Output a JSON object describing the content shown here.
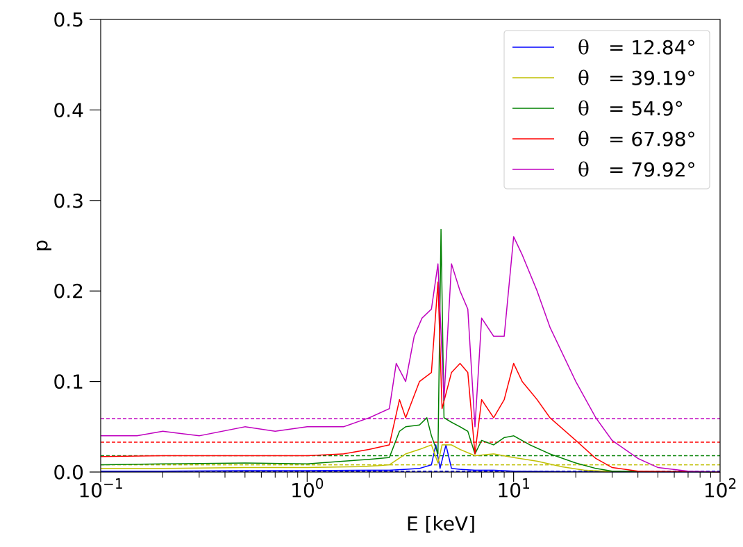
{
  "chart_data": {
    "type": "line",
    "title": "",
    "xlabel": "E [keV]",
    "ylabel": "p",
    "xscale": "log",
    "xlim": [
      0.1,
      100
    ],
    "ylim": [
      0.0,
      0.5
    ],
    "x_ticks": [
      {
        "value": 0.1,
        "base": "10",
        "exp": "−1"
      },
      {
        "value": 1,
        "base": "10",
        "exp": "0"
      },
      {
        "value": 10,
        "base": "10",
        "exp": "1"
      },
      {
        "value": 100,
        "base": "10",
        "exp": "2"
      }
    ],
    "y_ticks": [
      {
        "value": 0.0,
        "label": "0.0"
      },
      {
        "value": 0.1,
        "label": "0.1"
      },
      {
        "value": 0.2,
        "label": "0.2"
      },
      {
        "value": 0.3,
        "label": "0.3"
      },
      {
        "value": 0.4,
        "label": "0.4"
      },
      {
        "value": 0.5,
        "label": "0.5"
      }
    ],
    "grid": false,
    "legend_position": "top-right",
    "legend_symbol": "θ",
    "series": [
      {
        "name": "= 12.84°",
        "color": "#0000ff",
        "mean": 0.001,
        "points": [
          [
            0.1,
            0.001
          ],
          [
            0.2,
            0.001
          ],
          [
            0.5,
            0.0015
          ],
          [
            1.0,
            0.0015
          ],
          [
            2.0,
            0.002
          ],
          [
            2.5,
            0.002
          ],
          [
            3.0,
            0.003
          ],
          [
            3.5,
            0.004
          ],
          [
            4.0,
            0.008
          ],
          [
            4.2,
            0.03
          ],
          [
            4.4,
            0.004
          ],
          [
            4.7,
            0.03
          ],
          [
            5.0,
            0.004
          ],
          [
            5.5,
            0.003
          ],
          [
            6.5,
            0.002
          ],
          [
            8.0,
            0.002
          ],
          [
            10,
            0.001
          ],
          [
            15,
            0.0005
          ],
          [
            20,
            0.0002
          ],
          [
            40,
            0.0001
          ],
          [
            100,
            0.0
          ]
        ]
      },
      {
        "name": "= 39.19°",
        "color": "#bfbf00",
        "mean": 0.008,
        "points": [
          [
            0.1,
            0.004
          ],
          [
            0.2,
            0.004
          ],
          [
            0.5,
            0.005
          ],
          [
            1.0,
            0.005
          ],
          [
            1.8,
            0.006
          ],
          [
            2.2,
            0.007
          ],
          [
            2.5,
            0.008
          ],
          [
            3.0,
            0.02
          ],
          [
            3.5,
            0.025
          ],
          [
            4.0,
            0.03
          ],
          [
            4.3,
            0.01
          ],
          [
            4.5,
            0.03
          ],
          [
            5.0,
            0.03
          ],
          [
            5.5,
            0.025
          ],
          [
            6.5,
            0.018
          ],
          [
            8.0,
            0.02
          ],
          [
            10,
            0.016
          ],
          [
            13,
            0.012
          ],
          [
            17,
            0.006
          ],
          [
            22,
            0.002
          ],
          [
            30,
            0.0005
          ],
          [
            100,
            0.0
          ]
        ]
      },
      {
        "name": "= 54.9°",
        "color": "#008000",
        "mean": 0.018,
        "points": [
          [
            0.1,
            0.008
          ],
          [
            0.2,
            0.009
          ],
          [
            0.5,
            0.01
          ],
          [
            1.0,
            0.009
          ],
          [
            1.5,
            0.012
          ],
          [
            2.0,
            0.014
          ],
          [
            2.5,
            0.016
          ],
          [
            2.8,
            0.045
          ],
          [
            3.0,
            0.05
          ],
          [
            3.5,
            0.052
          ],
          [
            3.8,
            0.06
          ],
          [
            4.0,
            0.04
          ],
          [
            4.3,
            0.02
          ],
          [
            4.45,
            0.268
          ],
          [
            4.6,
            0.06
          ],
          [
            5.0,
            0.055
          ],
          [
            5.5,
            0.05
          ],
          [
            6.0,
            0.045
          ],
          [
            6.5,
            0.02
          ],
          [
            7.0,
            0.035
          ],
          [
            8.0,
            0.03
          ],
          [
            9.0,
            0.038
          ],
          [
            10,
            0.04
          ],
          [
            12,
            0.03
          ],
          [
            15,
            0.02
          ],
          [
            20,
            0.01
          ],
          [
            25,
            0.004
          ],
          [
            30,
            0.001
          ],
          [
            100,
            0.0
          ]
        ]
      },
      {
        "name": "= 67.98°",
        "color": "#ff0000",
        "mean": 0.033,
        "points": [
          [
            0.1,
            0.017
          ],
          [
            0.2,
            0.018
          ],
          [
            0.5,
            0.018
          ],
          [
            1.0,
            0.018
          ],
          [
            1.5,
            0.02
          ],
          [
            2.0,
            0.025
          ],
          [
            2.5,
            0.03
          ],
          [
            2.8,
            0.08
          ],
          [
            3.0,
            0.06
          ],
          [
            3.5,
            0.1
          ],
          [
            4.0,
            0.11
          ],
          [
            4.3,
            0.21
          ],
          [
            4.5,
            0.07
          ],
          [
            5.0,
            0.11
          ],
          [
            5.5,
            0.12
          ],
          [
            6.0,
            0.11
          ],
          [
            6.5,
            0.02
          ],
          [
            7.0,
            0.08
          ],
          [
            8.0,
            0.06
          ],
          [
            9.0,
            0.08
          ],
          [
            10,
            0.12
          ],
          [
            11,
            0.1
          ],
          [
            13,
            0.08
          ],
          [
            15,
            0.06
          ],
          [
            20,
            0.035
          ],
          [
            25,
            0.015
          ],
          [
            30,
            0.005
          ],
          [
            40,
            0.001
          ],
          [
            100,
            0.0
          ]
        ]
      },
      {
        "name": "= 79.92°",
        "color": "#bf00bf",
        "mean": 0.059,
        "points": [
          [
            0.1,
            0.04
          ],
          [
            0.15,
            0.04
          ],
          [
            0.2,
            0.045
          ],
          [
            0.3,
            0.04
          ],
          [
            0.5,
            0.05
          ],
          [
            0.7,
            0.045
          ],
          [
            1.0,
            0.05
          ],
          [
            1.5,
            0.05
          ],
          [
            2.0,
            0.06
          ],
          [
            2.5,
            0.07
          ],
          [
            2.7,
            0.12
          ],
          [
            3.0,
            0.1
          ],
          [
            3.3,
            0.15
          ],
          [
            3.6,
            0.17
          ],
          [
            4.0,
            0.18
          ],
          [
            4.3,
            0.23
          ],
          [
            4.6,
            0.08
          ],
          [
            5.0,
            0.23
          ],
          [
            5.5,
            0.2
          ],
          [
            6.0,
            0.18
          ],
          [
            6.5,
            0.05
          ],
          [
            7.0,
            0.17
          ],
          [
            8.0,
            0.15
          ],
          [
            9.0,
            0.15
          ],
          [
            10,
            0.26
          ],
          [
            11,
            0.24
          ],
          [
            13,
            0.2
          ],
          [
            15,
            0.16
          ],
          [
            20,
            0.1
          ],
          [
            25,
            0.06
          ],
          [
            30,
            0.035
          ],
          [
            40,
            0.015
          ],
          [
            50,
            0.005
          ],
          [
            70,
            0.001
          ],
          [
            100,
            0.0
          ]
        ]
      }
    ]
  }
}
